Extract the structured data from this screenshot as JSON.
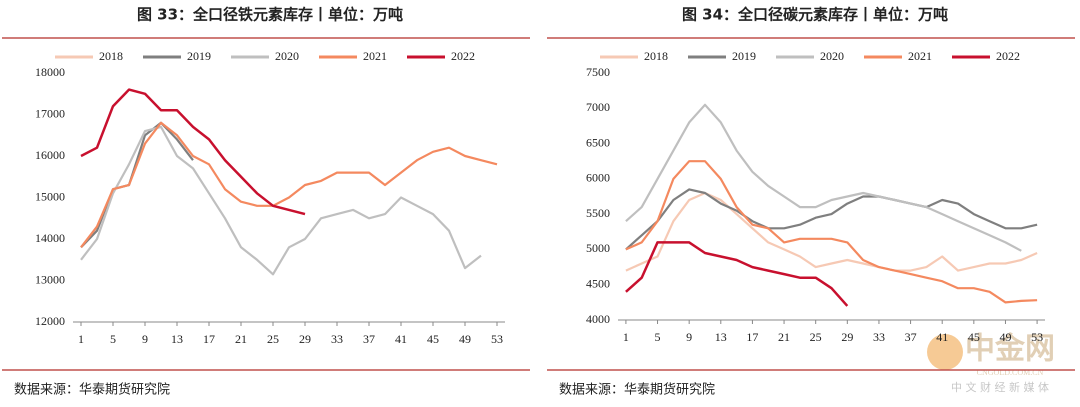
{
  "chart_data": [
    {
      "type": "line",
      "title": "图 33：全口径铁元素库存丨单位：万吨",
      "source": "数据来源：华泰期货研究院",
      "x": [
        1,
        3,
        5,
        7,
        9,
        11,
        13,
        15,
        17,
        19,
        21,
        23,
        25,
        27,
        29,
        31,
        33,
        35,
        37,
        39,
        41,
        43,
        45,
        47,
        49,
        51,
        53
      ],
      "xlim": [
        0,
        54
      ],
      "xticks": [
        1,
        5,
        9,
        13,
        17,
        21,
        25,
        29,
        33,
        37,
        41,
        45,
        49,
        53
      ],
      "ylim": [
        12000,
        18000
      ],
      "yticks": [
        12000,
        13000,
        14000,
        15000,
        16000,
        17000,
        18000
      ],
      "legend": "top",
      "series": [
        {
          "name": "2018",
          "color": "#f6c9b4",
          "values": [
            null,
            null,
            null,
            null,
            null,
            null,
            null,
            null,
            null,
            null,
            null,
            null,
            null,
            null,
            null,
            null,
            null,
            null,
            null,
            null,
            null,
            null,
            null,
            null,
            null,
            null,
            null
          ]
        },
        {
          "name": "2019",
          "color": "#7f7f7f",
          "values": [
            13800,
            14200,
            15200,
            15300,
            16500,
            16800,
            16400,
            15900,
            null,
            null,
            null,
            null,
            null,
            null,
            null,
            null,
            null,
            null,
            null,
            null,
            null,
            null,
            null,
            null,
            null,
            null,
            null
          ]
        },
        {
          "name": "2020",
          "color": "#bfbfbf",
          "values": [
            13500,
            14000,
            15100,
            15800,
            16600,
            16700,
            16000,
            15700,
            15100,
            14500,
            13800,
            13500,
            13150,
            13800,
            14000,
            14500,
            14600,
            14700,
            14500,
            14600,
            15000,
            14800,
            14600,
            14200,
            13300,
            13600,
            null
          ]
        },
        {
          "name": "2021",
          "color": "#f4895f",
          "values": [
            13800,
            14300,
            15200,
            15300,
            16300,
            16800,
            16500,
            16000,
            15800,
            15200,
            14900,
            14800,
            14800,
            15000,
            15300,
            15400,
            15600,
            15600,
            15600,
            15300,
            15600,
            15900,
            16100,
            16200,
            16000,
            15900,
            15800
          ]
        },
        {
          "name": "2022",
          "color": "#c8102e",
          "values": [
            16000,
            16200,
            17200,
            17600,
            17500,
            17100,
            17100,
            16700,
            16400,
            15900,
            15500,
            15100,
            14800,
            14700,
            14600,
            null,
            null,
            null,
            null,
            null,
            null,
            null,
            null,
            null,
            null,
            null,
            null
          ]
        }
      ]
    },
    {
      "type": "line",
      "title": "图 34：全口径碳元素库存丨单位：万吨",
      "source": "数据来源：华泰期货研究院",
      "x": [
        1,
        3,
        5,
        7,
        9,
        11,
        13,
        15,
        17,
        19,
        21,
        23,
        25,
        27,
        29,
        31,
        33,
        35,
        37,
        39,
        41,
        43,
        45,
        47,
        49,
        51,
        53
      ],
      "xlim": [
        0,
        54
      ],
      "xticks": [
        1,
        5,
        9,
        13,
        17,
        21,
        25,
        29,
        33,
        37,
        41,
        45,
        49,
        53
      ],
      "ylim": [
        4000,
        7500
      ],
      "yticks": [
        4000,
        4500,
        5000,
        5500,
        6000,
        6500,
        7000,
        7500
      ],
      "legend": "top",
      "series": [
        {
          "name": "2018",
          "color": "#f6c9b4",
          "values": [
            4700,
            4800,
            4900,
            5400,
            5700,
            5800,
            5700,
            5500,
            5300,
            5100,
            5000,
            4900,
            4750,
            4800,
            4850,
            4800,
            4750,
            4700,
            4700,
            4750,
            4900,
            4700,
            4750,
            4800,
            4800,
            4850,
            4950
          ]
        },
        {
          "name": "2019",
          "color": "#7f7f7f",
          "values": [
            5000,
            5200,
            5400,
            5700,
            5850,
            5800,
            5650,
            5550,
            5400,
            5300,
            5300,
            5350,
            5450,
            5500,
            5650,
            5750,
            5750,
            5700,
            5650,
            5600,
            5700,
            5650,
            5500,
            5400,
            5300,
            5300,
            5350
          ]
        },
        {
          "name": "2020",
          "color": "#bfbfbf",
          "values": [
            5400,
            5600,
            6000,
            6400,
            6800,
            7050,
            6800,
            6400,
            6100,
            5900,
            5750,
            5600,
            5600,
            5700,
            5750,
            5800,
            5750,
            5700,
            5650,
            5600,
            5500,
            5400,
            5300,
            5200,
            5100,
            4980,
            null
          ]
        },
        {
          "name": "2021",
          "color": "#f4895f",
          "values": [
            5000,
            5100,
            5400,
            6000,
            6250,
            6250,
            6000,
            5600,
            5350,
            5300,
            5100,
            5150,
            5150,
            5150,
            5100,
            4850,
            4750,
            4700,
            4650,
            4600,
            4550,
            4450,
            4450,
            4400,
            4250,
            4270,
            4280
          ]
        },
        {
          "name": "2022",
          "color": "#c8102e",
          "values": [
            4400,
            4600,
            5100,
            5100,
            5100,
            4950,
            4900,
            4850,
            4750,
            4700,
            4650,
            4600,
            4600,
            4450,
            4200,
            null,
            null,
            null,
            null,
            null,
            null,
            null,
            null,
            null,
            null,
            null,
            null
          ]
        }
      ]
    }
  ],
  "watermark": {
    "name": "中金网",
    "url": "CNGOLD.COM.CN",
    "tagline": "中 文 财 经 新 媒 体"
  }
}
